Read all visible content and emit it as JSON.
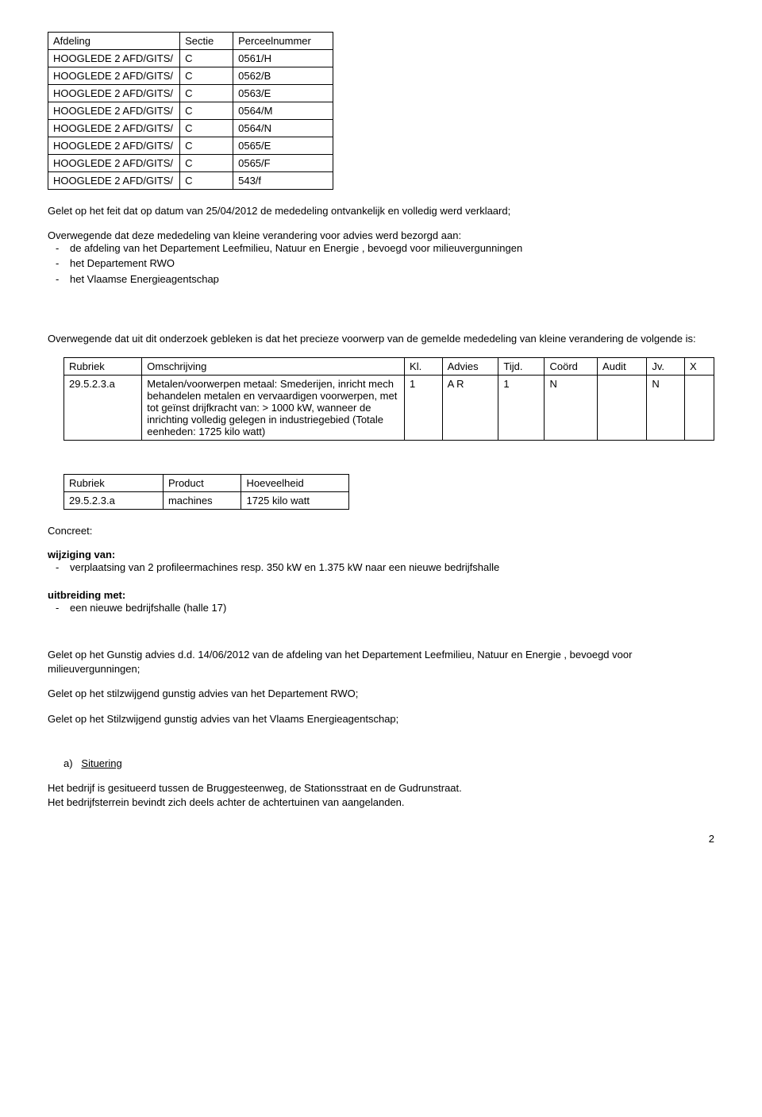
{
  "table1": {
    "headers": [
      "Afdeling",
      "Sectie",
      "Perceelnummer"
    ],
    "rows": [
      [
        "HOOGLEDE 2 AFD/GITS/",
        "C",
        "0561/H"
      ],
      [
        "HOOGLEDE 2 AFD/GITS/",
        "C",
        "0562/B"
      ],
      [
        "HOOGLEDE 2 AFD/GITS/",
        "C",
        "0563/E"
      ],
      [
        "HOOGLEDE 2 AFD/GITS/",
        "C",
        "0564/M"
      ],
      [
        "HOOGLEDE 2 AFD/GITS/",
        "C",
        "0564/N"
      ],
      [
        "HOOGLEDE 2 AFD/GITS/",
        "C",
        "0565/E"
      ],
      [
        "HOOGLEDE 2 AFD/GITS/",
        "C",
        "0565/F"
      ],
      [
        "HOOGLEDE 2 AFD/GITS/",
        "C",
        "543/f"
      ]
    ],
    "col_widths": [
      "180px",
      "60px",
      "120px"
    ]
  },
  "para1": "Gelet op het feit dat op datum van 25/04/2012 de mededeling ontvankelijk en volledig werd verklaard;",
  "para2_intro": "Overwegende dat deze mededeling van kleine verandering voor advies werd bezorgd aan:",
  "para2_items": [
    "de afdeling van het Departement Leefmilieu, Natuur en Energie , bevoegd voor milieuvergunningen",
    "het Departement RWO",
    "het Vlaamse Energieagentschap"
  ],
  "para3": "Overwegende dat uit dit onderzoek gebleken is dat het precieze voorwerp van de gemelde mededeling van kleine verandering de volgende is:",
  "table2": {
    "headers": [
      "Rubriek",
      "Omschrijving",
      "Kl.",
      "Advies",
      "Tijd.",
      "Coörd",
      "Audit",
      "Jv.",
      "X"
    ],
    "rows": [
      [
        "29.5.2.3.a",
        "Metalen/voorwerpen metaal: Smederijen, inricht mech behandelen metalen en vervaardigen voorwerpen, met tot geïnst drijfkracht van: > 1000 kW, wanneer de inrichting volledig gelegen in industriegebied (Totale eenheden: 1725 kilo watt)",
        "1",
        "A R",
        "1",
        "N",
        "",
        "N",
        ""
      ]
    ],
    "col_widths": [
      "80px",
      "300px",
      "32px",
      "54px",
      "42px",
      "50px",
      "46px",
      "32px",
      "22px"
    ]
  },
  "table3": {
    "headers": [
      "Rubriek",
      "Product",
      "Hoeveelheid"
    ],
    "rows": [
      [
        "29.5.2.3.a",
        "machines",
        "1725 kilo watt"
      ]
    ],
    "col_widths": [
      "120px",
      "90px",
      "130px"
    ]
  },
  "concreet_label": "Concreet:",
  "wijziging_label": "wijziging van:",
  "wijziging_items": [
    "verplaatsing van 2 profileermachines resp. 350 kW en 1.375 kW naar een nieuwe bedrijfshalle"
  ],
  "uitbreiding_label": "uitbreiding met:",
  "uitbreiding_items": [
    "een nieuwe bedrijfshalle (halle 17)"
  ],
  "para4": "Gelet op het Gunstig advies d.d. 14/06/2012 van de afdeling van het Departement Leefmilieu, Natuur en Energie , bevoegd voor milieuvergunningen;",
  "para5": "Gelet op het stilzwijgend gunstig advies van het Departement RWO;",
  "para6": "Gelet op het Stilzwijgend gunstig advies van het Vlaams Energieagentschap;",
  "situering_marker": "a)",
  "situering_label": "Situering",
  "para7a": "Het bedrijf is gesitueerd tussen de Bruggesteenweg, de Stationsstraat en de Gudrunstraat.",
  "para7b": "Het bedrijfsterrein bevindt zich deels achter de achtertuinen van aangelanden.",
  "page_number": "2"
}
